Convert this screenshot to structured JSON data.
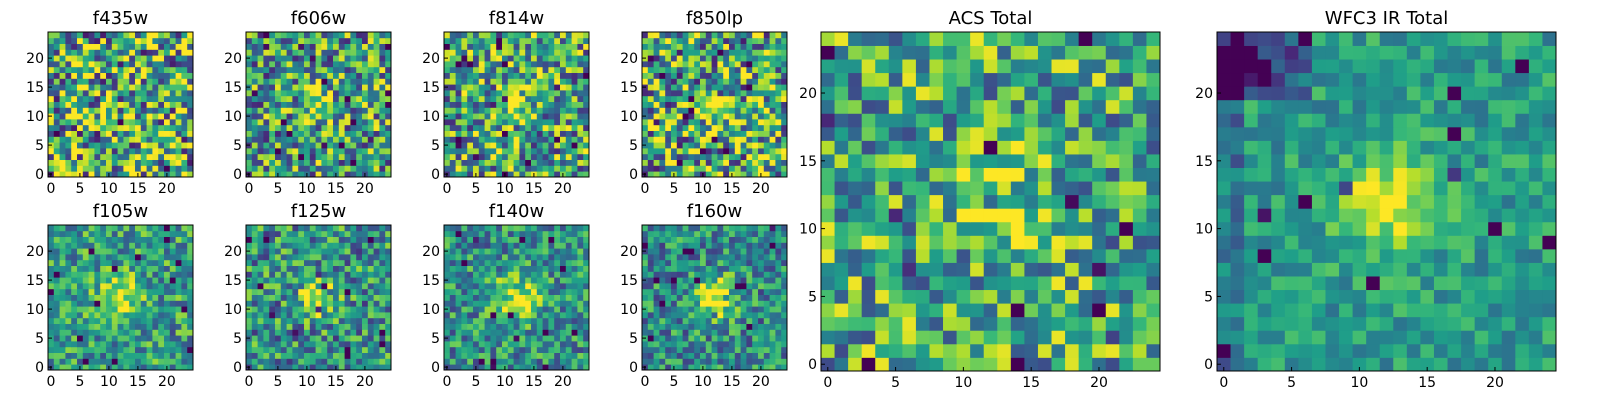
{
  "chart_data": {
    "type": "heatmap",
    "colormap": "viridis",
    "value_range": [
      0,
      1
    ],
    "pixel_grid": [
      25,
      25
    ],
    "panels": [
      {
        "id": "f435w",
        "title": "f435w",
        "xlim": [
          -0.5,
          24.5
        ],
        "ylim": [
          -0.5,
          24.5
        ],
        "xticks": [
          "0",
          "5",
          "10",
          "15",
          "20"
        ],
        "yticks": [
          "0",
          "5",
          "10",
          "15",
          "20"
        ],
        "source_sigma": 0.0,
        "peak": 0.0,
        "noise": 0.55,
        "base": 0.62,
        "cold_spots": 0,
        "seed": 11
      },
      {
        "id": "f606w",
        "title": "f606w",
        "xlim": [
          -0.5,
          24.5
        ],
        "ylim": [
          -0.5,
          24.5
        ],
        "xticks": [
          "0",
          "5",
          "10",
          "15",
          "20"
        ],
        "yticks": [
          "0",
          "5",
          "10",
          "15",
          "20"
        ],
        "source_sigma": 1.8,
        "peak": 0.45,
        "noise": 0.45,
        "base": 0.55,
        "cold_spots": 0,
        "seed": 23
      },
      {
        "id": "f814w",
        "title": "f814w",
        "xlim": [
          -0.5,
          24.5
        ],
        "ylim": [
          -0.5,
          24.5
        ],
        "xticks": [
          "0",
          "5",
          "10",
          "15",
          "20"
        ],
        "yticks": [
          "0",
          "5",
          "10",
          "15",
          "20"
        ],
        "source_sigma": 2.0,
        "peak": 0.45,
        "noise": 0.45,
        "base": 0.58,
        "cold_spots": 0,
        "seed": 37
      },
      {
        "id": "f850lp",
        "title": "f850lp",
        "xlim": [
          -0.5,
          24.5
        ],
        "ylim": [
          -0.5,
          24.5
        ],
        "xticks": [
          "0",
          "5",
          "10",
          "15",
          "20"
        ],
        "yticks": [
          "0",
          "5",
          "10",
          "15",
          "20"
        ],
        "source_sigma": 2.0,
        "peak": 0.45,
        "noise": 0.5,
        "base": 0.58,
        "cold_spots": 0,
        "seed": 41
      },
      {
        "id": "f105w",
        "title": "f105w",
        "xlim": [
          -0.5,
          24.5
        ],
        "ylim": [
          -0.5,
          24.5
        ],
        "xticks": [
          "0",
          "5",
          "10",
          "15",
          "20"
        ],
        "yticks": [
          "0",
          "5",
          "10",
          "15",
          "20"
        ],
        "source_sigma": 2.6,
        "peak": 0.45,
        "noise": 0.3,
        "base": 0.55,
        "cold_spots": 0,
        "seed": 53
      },
      {
        "id": "f125w",
        "title": "f125w",
        "xlim": [
          -0.5,
          24.5
        ],
        "ylim": [
          -0.5,
          24.5
        ],
        "xticks": [
          "0",
          "5",
          "10",
          "15",
          "20"
        ],
        "yticks": [
          "0",
          "5",
          "10",
          "15",
          "20"
        ],
        "source_sigma": 2.2,
        "peak": 0.5,
        "noise": 0.35,
        "base": 0.5,
        "cold_spots": 0,
        "seed": 67
      },
      {
        "id": "f140w",
        "title": "f140w",
        "xlim": [
          -0.5,
          24.5
        ],
        "ylim": [
          -0.5,
          24.5
        ],
        "xticks": [
          "0",
          "5",
          "10",
          "15",
          "20"
        ],
        "yticks": [
          "0",
          "5",
          "10",
          "15",
          "20"
        ],
        "source_sigma": 2.8,
        "peak": 0.45,
        "noise": 0.3,
        "base": 0.5,
        "cold_spots": 0,
        "seed": 71
      },
      {
        "id": "f160w",
        "title": "f160w",
        "xlim": [
          -0.5,
          24.5
        ],
        "ylim": [
          -0.5,
          24.5
        ],
        "xticks": [
          "0",
          "5",
          "10",
          "15",
          "20"
        ],
        "yticks": [
          "0",
          "5",
          "10",
          "15",
          "20"
        ],
        "source_sigma": 2.6,
        "peak": 0.5,
        "noise": 0.3,
        "base": 0.48,
        "cold_spots": 0,
        "seed": 83
      },
      {
        "id": "acs-total",
        "title": "ACS Total",
        "xlim": [
          -0.5,
          24.5
        ],
        "ylim": [
          -0.5,
          24.5
        ],
        "xticks": [
          "0",
          "5",
          "10",
          "15",
          "20"
        ],
        "yticks": [
          "0",
          "5",
          "10",
          "15",
          "20"
        ],
        "source_sigma": 1.8,
        "peak": 0.4,
        "noise": 0.38,
        "base": 0.6,
        "cold_spots": 0,
        "seed": 97
      },
      {
        "id": "wfc3-total",
        "title": "WFC3 IR Total",
        "xlim": [
          -0.5,
          24.5
        ],
        "ylim": [
          -0.5,
          24.5
        ],
        "xticks": [
          "0",
          "5",
          "10",
          "15",
          "20"
        ],
        "yticks": [
          "0",
          "5",
          "10",
          "15",
          "20"
        ],
        "source_sigma": 2.4,
        "peak": 0.45,
        "noise": 0.18,
        "base": 0.55,
        "cold_spots": 1,
        "seed": 101
      }
    ]
  }
}
